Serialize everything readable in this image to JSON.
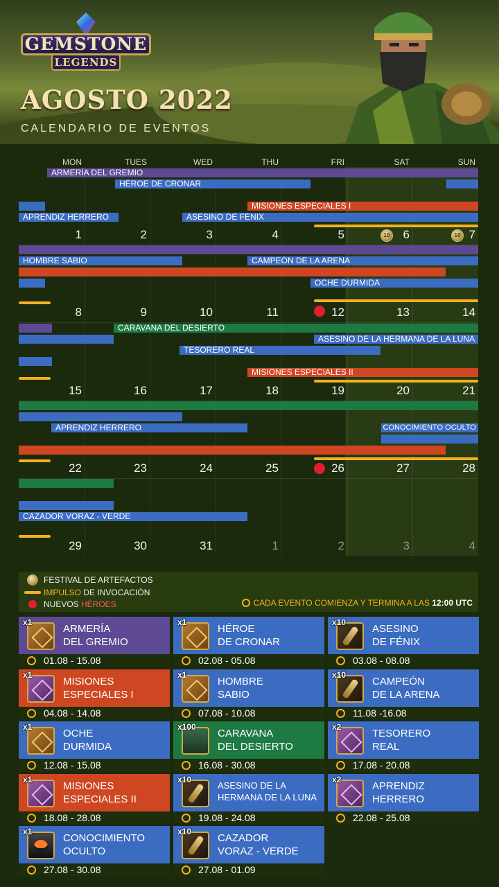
{
  "header": {
    "logo_line1": "GEMSTONE",
    "logo_line2": "LEGENDS",
    "title": "AGOSTO 2022",
    "subtitle": "CALENDARIO DE EVENTOS"
  },
  "weekdays": [
    "MON",
    "TUES",
    "WED",
    "THU",
    "FRI",
    "SAT",
    "SUN"
  ],
  "weeks": [
    {
      "days": [
        "1",
        "2",
        "3",
        "4",
        "5",
        "6",
        "7"
      ],
      "dim": [
        false,
        false,
        false,
        false,
        false,
        false,
        false
      ]
    },
    {
      "days": [
        "8",
        "9",
        "10",
        "11",
        "12",
        "13",
        "14"
      ],
      "dim": [
        false,
        false,
        false,
        false,
        false,
        false,
        false
      ]
    },
    {
      "days": [
        "15",
        "16",
        "17",
        "18",
        "19",
        "20",
        "21"
      ],
      "dim": [
        false,
        false,
        false,
        false,
        false,
        false,
        false
      ]
    },
    {
      "days": [
        "22",
        "23",
        "24",
        "25",
        "26",
        "27",
        "28"
      ],
      "dim": [
        false,
        false,
        false,
        false,
        false,
        false,
        false
      ]
    },
    {
      "days": [
        "29",
        "30",
        "31",
        "1",
        "2",
        "3",
        "4"
      ],
      "dim": [
        false,
        false,
        false,
        true,
        true,
        true,
        true
      ]
    }
  ],
  "bar_labels": {
    "armeria": "ARMERÍA DEL GREMIO",
    "heroe_cronar": "HÉROE DE CRONAR",
    "misiones1": "MISIONES ESPECIALES I",
    "aprendiz1": "APRENDIZ HERRERO",
    "asesino_fenix": "ASESINO DE FÉNIX",
    "hombre_sabio": "HOMBRE SABIO",
    "campeon": "CAMPEÓN DE LA ARENA",
    "oche": "OCHE DURMIDA",
    "caravana": "CARAVANA DEL DESIERTO",
    "asesino_luna": "ASESINO DE LA HERMANA DE LA LUNA",
    "tesorero": "TESORERO REAL",
    "misiones2": "MISIONES ESPECIALES II",
    "aprendiz2": "APRENDIZ HERRERO",
    "conocimiento": "CONOCIMIENTO OCULTO",
    "cazador": "CAZADOR VORAZ - VERDE"
  },
  "coin_label": "10",
  "legend": {
    "festival": "FESTIVAL DE ARTEFACTOS",
    "impulso_a": "IMPULSO",
    "impulso_b": " DE INVOCACIÓN",
    "nuevos_a": "NUEVOS ",
    "nuevos_b": "HÉROES",
    "note_a": "CADA EVENTO COMIENZA Y TERMINA A LAS ",
    "note_b": "12:00 UTC"
  },
  "colors": {
    "purple": "#5e4a94",
    "blue": "#3c6cc2",
    "red": "#cf4623",
    "green": "#1e7a43",
    "boost": "#f2b21e"
  },
  "cards": [
    {
      "mult": "x1",
      "name": "ARMERÍA\nDEL GREMIO",
      "dates": "01.08 - 15.08",
      "color": "#5e4a94",
      "icon": "book-icon"
    },
    {
      "mult": "x1",
      "name": "HÉROE\nDE CRONAR",
      "dates": "02.08 - 05.08",
      "color": "#3c6cc2",
      "icon": "book-icon"
    },
    {
      "mult": "x10",
      "name": "ASESINO\nDE FÉNIX",
      "dates": "03.08 - 08.08",
      "color": "#3c6cc2",
      "icon": "scroll-icon"
    },
    {
      "mult": "x1",
      "name": "MISIONES\nESPECIALES I",
      "dates": "04.08 - 14.08",
      "color": "#cf4623",
      "icon": "purple-book-icon"
    },
    {
      "mult": "x1",
      "name": "HOMBRE\nSABIO",
      "dates": "07.08 - 10.08",
      "color": "#3c6cc2",
      "icon": "book-icon"
    },
    {
      "mult": "x10",
      "name": "CAMPEÓN\nDE LA ARENA",
      "dates": "11.08 -16.08",
      "color": "#3c6cc2",
      "icon": "scroll-icon"
    },
    {
      "mult": "x1",
      "name": "OCHE\nDURMIDA",
      "dates": "12.08 - 15.08",
      "color": "#3c6cc2",
      "icon": "book-icon"
    },
    {
      "mult": "x100",
      "name": "CARAVANA\nDEL DESIERTO",
      "dates": "16.08 - 30.08",
      "color": "#1e7a43",
      "icon": "hero-card-icon"
    },
    {
      "mult": "x2",
      "name": "TESORERO\nREAL",
      "dates": "17.08 - 20.08",
      "color": "#3c6cc2",
      "icon": "purple-book-icon"
    },
    {
      "mult": "x1",
      "name": "MISIONES\nESPECIALES II",
      "dates": "18.08 - 28.08",
      "color": "#cf4623",
      "icon": "purple-book-icon"
    },
    {
      "mult": "x10",
      "name": "ASESINO DE LA\nHERMANA DE LA LUNA",
      "dates": "19.08 - 24.08",
      "color": "#3c6cc2",
      "icon": "scroll-icon"
    },
    {
      "mult": "x2",
      "name": "APRENDIZ\nHERRERO",
      "dates": "22.08 - 25.08",
      "color": "#3c6cc2",
      "icon": "purple-book-icon"
    },
    {
      "mult": "x1",
      "name": "CONOCIMIENTO\nOCULTO",
      "dates": "27.08 - 30.08",
      "color": "#3c6cc2",
      "icon": "cauldron-icon"
    },
    {
      "mult": "x10",
      "name": "CAZADOR\nVORAZ - VERDE",
      "dates": "27.08 - 01.09",
      "color": "#3c6cc2",
      "icon": "scroll-icon"
    }
  ]
}
